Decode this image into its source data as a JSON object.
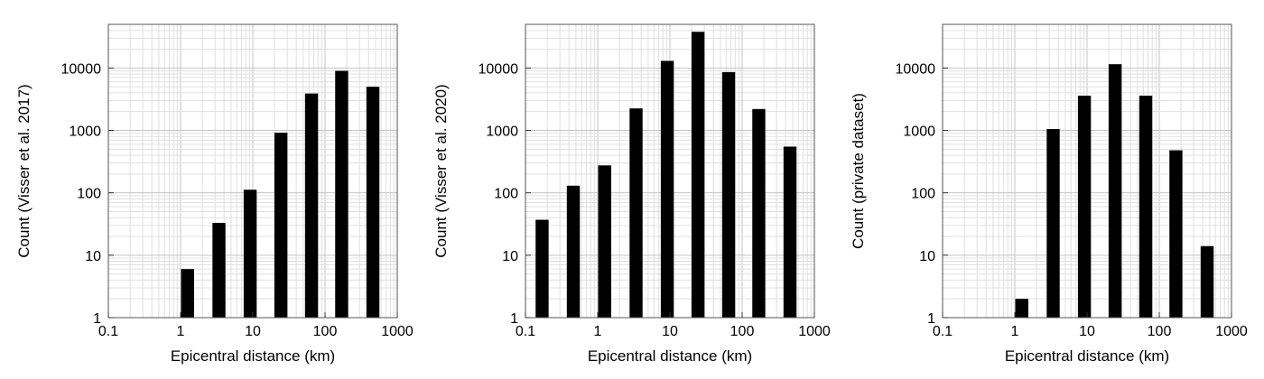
{
  "chart_data": [
    {
      "type": "bar",
      "title": "",
      "xlabel": "Epicentral distance (km)",
      "ylabel": "Count (Visser et al. 2017)",
      "xscale": "log",
      "yscale": "log",
      "xlim": [
        0.1,
        1000
      ],
      "ylim": [
        1,
        50000
      ],
      "grid": true,
      "x_ticks": [
        "0.1",
        "1",
        "10",
        "100",
        "1000"
      ],
      "y_ticks": [
        "1",
        "10",
        "100",
        "1000",
        "10000"
      ],
      "x": [
        1.25,
        3.4,
        9.2,
        24.5,
        65,
        170,
        460
      ],
      "values": [
        6,
        33,
        112,
        920,
        3900,
        9000,
        5000
      ],
      "bar_color": "#000000"
    },
    {
      "type": "bar",
      "title": "",
      "xlabel": "Epicentral distance (km)",
      "ylabel": "Count (Visser et al. 2020)",
      "xscale": "log",
      "yscale": "log",
      "xlim": [
        0.1,
        1000
      ],
      "ylim": [
        1,
        50000
      ],
      "grid": true,
      "x_ticks": [
        "0.1",
        "1",
        "10",
        "100",
        "1000"
      ],
      "y_ticks": [
        "1",
        "10",
        "100",
        "1000",
        "10000"
      ],
      "x": [
        0.17,
        0.46,
        1.25,
        3.4,
        9.2,
        24.5,
        65,
        170,
        460
      ],
      "values": [
        37,
        130,
        275,
        2250,
        13000,
        38000,
        8600,
        2200,
        550
      ],
      "bar_color": "#000000"
    },
    {
      "type": "bar",
      "title": "",
      "xlabel": "Epicentral distance (km)",
      "ylabel": "Count (private dataset)",
      "xscale": "log",
      "yscale": "log",
      "xlim": [
        0.1,
        1000
      ],
      "ylim": [
        1,
        50000
      ],
      "grid": true,
      "x_ticks": [
        "0.1",
        "1",
        "10",
        "100",
        "1000"
      ],
      "y_ticks": [
        "1",
        "10",
        "100",
        "1000",
        "10000"
      ],
      "x": [
        1.25,
        3.4,
        9.2,
        24.5,
        65,
        170,
        460
      ],
      "values": [
        2,
        1050,
        3600,
        11500,
        3600,
        480,
        14
      ],
      "bar_color": "#000000"
    }
  ]
}
